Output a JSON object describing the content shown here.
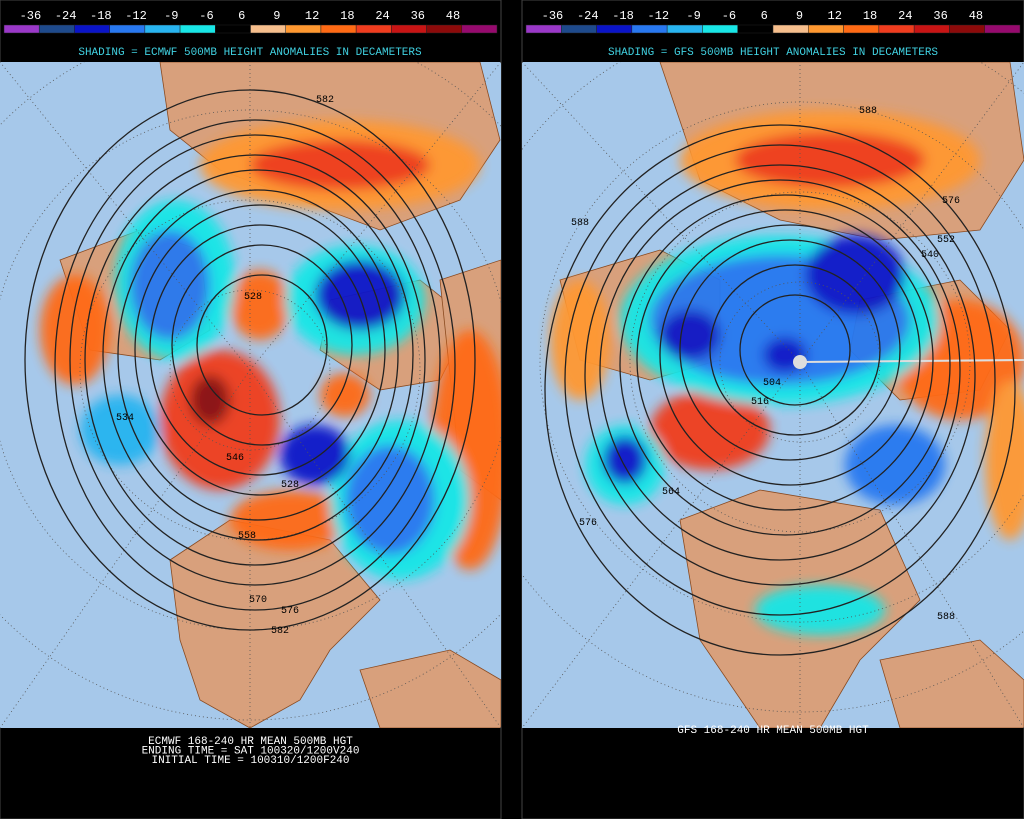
{
  "colorbar": {
    "labels": [
      "-36",
      "-24",
      "-18",
      "-12",
      "-9",
      "-6",
      "6",
      "9",
      "12",
      "18",
      "24",
      "36",
      "48"
    ],
    "colors": [
      "#9a38c8",
      "#1e4a8c",
      "#0a14c8",
      "#2878f0",
      "#28b4f0",
      "#18e6e6",
      "#000000",
      "#f6be8c",
      "#ff9830",
      "#ff6a14",
      "#f03c1e",
      "#c81414",
      "#8c0a0a",
      "#960a6e"
    ]
  },
  "panels": [
    {
      "title": "SHADING = ECMWF 500MB HEIGHT ANOMALIES IN DECAMETERS",
      "contour_labels": [
        "582",
        "528",
        "534",
        "546",
        "558",
        "570",
        "576",
        "582",
        "528"
      ],
      "footer": [
        "ECMWF 168-240 HR MEAN 500MB HGT",
        "ENDING TIME = SAT 100320/1200V240",
        "INITIAL TIME = 100310/1200F240"
      ]
    },
    {
      "title": "SHADING = GFS 500MB HEIGHT ANOMALIES IN DECAMETERS",
      "contour_labels": [
        "588",
        "576",
        "552",
        "540",
        "588",
        "504",
        "516",
        "564",
        "576",
        "588"
      ],
      "footer": [
        "GFS 168-240 HR MEAN 500MB HGT"
      ]
    }
  ]
}
